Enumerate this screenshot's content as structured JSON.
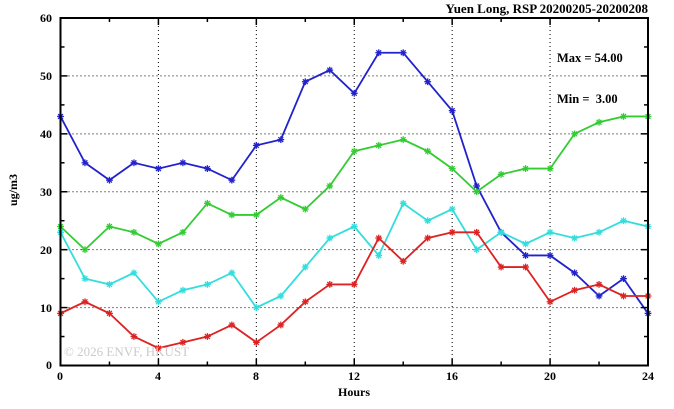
{
  "title": "Yuen Long, RSP 20200205-20200208",
  "stats": {
    "max_label": "Max = 54.00",
    "min_label": "Min =  3.00"
  },
  "watermark": "© 2026 ENVF, HKUST",
  "axes": {
    "x_title": "Hours",
    "y_title": "ug/m3",
    "x_labels": [
      "0",
      "4",
      "8",
      "12",
      "16",
      "20",
      "24"
    ],
    "y_labels": [
      "0",
      "10",
      "20",
      "30",
      "40",
      "50",
      "60"
    ]
  },
  "chart_data": {
    "type": "line",
    "title": "Yuen Long, RSP 20200205-20200208",
    "xlabel": "Hours",
    "ylabel": "ug/m3",
    "xlim": [
      0,
      24
    ],
    "ylim": [
      0,
      60
    ],
    "x_ticks_major": [
      0,
      4,
      8,
      12,
      16,
      20,
      24
    ],
    "x_ticks_minor": [
      2,
      6,
      10,
      14,
      18,
      22
    ],
    "y_ticks_major": [
      0,
      10,
      20,
      30,
      40,
      50,
      60
    ],
    "y_ticks_minor": [
      5,
      15,
      25,
      35,
      45,
      55
    ],
    "grid": "dotted lines at major ticks, ticks mirrored on all four sides",
    "legend_position": "none",
    "marker": "asterisk",
    "x": [
      0,
      1,
      2,
      3,
      4,
      5,
      6,
      7,
      8,
      9,
      10,
      11,
      12,
      13,
      14,
      15,
      16,
      17,
      18,
      19,
      20,
      21,
      22,
      23,
      24
    ],
    "series": [
      {
        "name": "series-blue",
        "color": "#2222cc",
        "values": [
          43,
          35,
          32,
          35,
          34,
          35,
          34,
          32,
          38,
          39,
          49,
          51,
          47,
          54,
          54,
          49,
          44,
          31,
          23,
          19,
          19,
          16,
          12,
          15,
          9
        ]
      },
      {
        "name": "series-green",
        "color": "#33cc33",
        "values": [
          24,
          20,
          24,
          23,
          21,
          23,
          28,
          26,
          26,
          29,
          27,
          31,
          37,
          38,
          39,
          37,
          34,
          30,
          33,
          34,
          34,
          40,
          42,
          43,
          43
        ]
      },
      {
        "name": "series-cyan",
        "color": "#33dddd",
        "values": [
          23,
          15,
          14,
          16,
          11,
          13,
          14,
          16,
          10,
          12,
          17,
          22,
          24,
          19,
          28,
          25,
          27,
          20,
          23,
          21,
          23,
          22,
          23,
          25,
          24
        ]
      },
      {
        "name": "series-red",
        "color": "#dd2222",
        "values": [
          9,
          11,
          9,
          5,
          3,
          4,
          5,
          7,
          4,
          7,
          11,
          14,
          14,
          22,
          18,
          22,
          23,
          23,
          17,
          17,
          11,
          13,
          14,
          12,
          12
        ]
      }
    ],
    "annotations": [
      {
        "text": "Max = 54.00"
      },
      {
        "text": "Min =  3.00"
      }
    ],
    "stats": {
      "max": 54.0,
      "min": 3.0
    }
  }
}
